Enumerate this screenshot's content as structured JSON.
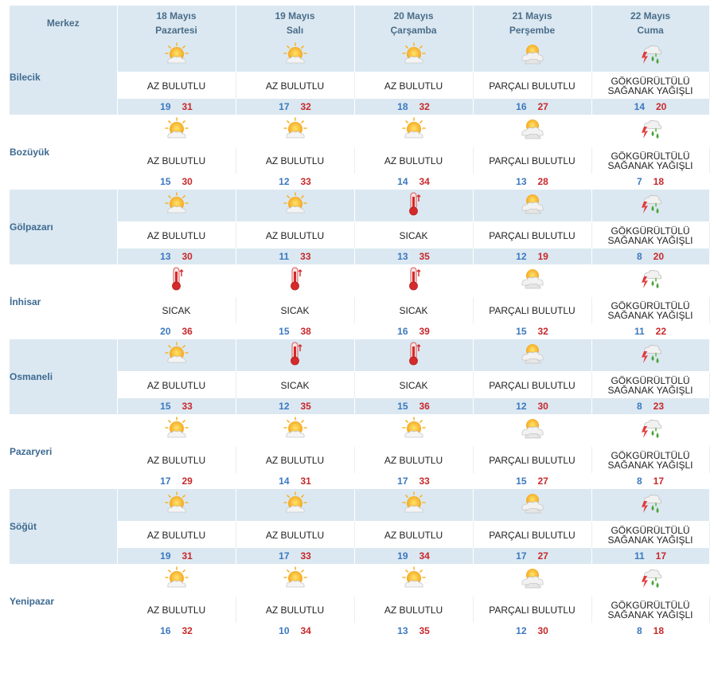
{
  "header": {
    "merkez": "Merkez",
    "days": [
      {
        "date": "18 Mayıs",
        "day": "Pazartesi"
      },
      {
        "date": "19 Mayıs",
        "day": "Salı"
      },
      {
        "date": "20 Mayıs",
        "day": "Çarşamba"
      },
      {
        "date": "21 Mayıs",
        "day": "Perşembe"
      },
      {
        "date": "22 Mayıs",
        "day": "Cuma"
      }
    ]
  },
  "icons": {
    "AZ BULUTLU": "partly-sunny-icon",
    "PARÇALI BULUTLU": "mostly-cloudy-icon",
    "SICAK": "thermometer-hot-icon",
    "GÖKGÜRÜLTÜLÜ SAĞANAK YAĞIŞLI": "thunder-shower-icon"
  },
  "cities": [
    {
      "name": "Bilecik",
      "forecast": [
        {
          "desc": "AZ BULUTLU",
          "low": "19",
          "high": "31"
        },
        {
          "desc": "AZ BULUTLU",
          "low": "17",
          "high": "32"
        },
        {
          "desc": "AZ BULUTLU",
          "low": "18",
          "high": "32"
        },
        {
          "desc": "PARÇALI BULUTLU",
          "low": "16",
          "high": "27"
        },
        {
          "desc": "GÖKGÜRÜLTÜLÜ SAĞANAK YAĞIŞLI",
          "low": "14",
          "high": "20"
        }
      ]
    },
    {
      "name": "Bozüyük",
      "forecast": [
        {
          "desc": "AZ BULUTLU",
          "low": "15",
          "high": "30"
        },
        {
          "desc": "AZ BULUTLU",
          "low": "12",
          "high": "33"
        },
        {
          "desc": "AZ BULUTLU",
          "low": "14",
          "high": "34"
        },
        {
          "desc": "PARÇALI BULUTLU",
          "low": "13",
          "high": "28"
        },
        {
          "desc": "GÖKGÜRÜLTÜLÜ SAĞANAK YAĞIŞLI",
          "low": "7",
          "high": "18"
        }
      ]
    },
    {
      "name": "Gölpazarı",
      "forecast": [
        {
          "desc": "AZ BULUTLU",
          "low": "13",
          "high": "30"
        },
        {
          "desc": "AZ BULUTLU",
          "low": "11",
          "high": "33"
        },
        {
          "desc": "SICAK",
          "low": "13",
          "high": "35"
        },
        {
          "desc": "PARÇALI BULUTLU",
          "low": "12",
          "high": "19"
        },
        {
          "desc": "GÖKGÜRÜLTÜLÜ SAĞANAK YAĞIŞLI",
          "low": "8",
          "high": "20"
        }
      ]
    },
    {
      "name": "İnhisar",
      "forecast": [
        {
          "desc": "SICAK",
          "low": "20",
          "high": "36"
        },
        {
          "desc": "SICAK",
          "low": "15",
          "high": "38"
        },
        {
          "desc": "SICAK",
          "low": "16",
          "high": "39"
        },
        {
          "desc": "PARÇALI BULUTLU",
          "low": "15",
          "high": "32"
        },
        {
          "desc": "GÖKGÜRÜLTÜLÜ SAĞANAK YAĞIŞLI",
          "low": "11",
          "high": "22"
        }
      ]
    },
    {
      "name": "Osmaneli",
      "forecast": [
        {
          "desc": "AZ BULUTLU",
          "low": "15",
          "high": "33"
        },
        {
          "desc": "SICAK",
          "low": "12",
          "high": "35"
        },
        {
          "desc": "SICAK",
          "low": "15",
          "high": "36"
        },
        {
          "desc": "PARÇALI BULUTLU",
          "low": "12",
          "high": "30"
        },
        {
          "desc": "GÖKGÜRÜLTÜLÜ SAĞANAK YAĞIŞLI",
          "low": "8",
          "high": "23"
        }
      ]
    },
    {
      "name": "Pazaryeri",
      "forecast": [
        {
          "desc": "AZ BULUTLU",
          "low": "17",
          "high": "29"
        },
        {
          "desc": "AZ BULUTLU",
          "low": "14",
          "high": "31"
        },
        {
          "desc": "AZ BULUTLU",
          "low": "17",
          "high": "33"
        },
        {
          "desc": "PARÇALI BULUTLU",
          "low": "15",
          "high": "27"
        },
        {
          "desc": "GÖKGÜRÜLTÜLÜ SAĞANAK YAĞIŞLI",
          "low": "8",
          "high": "17"
        }
      ]
    },
    {
      "name": "Söğüt",
      "forecast": [
        {
          "desc": "AZ BULUTLU",
          "low": "19",
          "high": "31"
        },
        {
          "desc": "AZ BULUTLU",
          "low": "17",
          "high": "33"
        },
        {
          "desc": "AZ BULUTLU",
          "low": "19",
          "high": "34"
        },
        {
          "desc": "PARÇALI BULUTLU",
          "low": "17",
          "high": "27"
        },
        {
          "desc": "GÖKGÜRÜLTÜLÜ SAĞANAK YAĞIŞLI",
          "low": "11",
          "high": "17"
        }
      ]
    },
    {
      "name": "Yenipazar",
      "forecast": [
        {
          "desc": "AZ BULUTLU",
          "low": "16",
          "high": "32"
        },
        {
          "desc": "AZ BULUTLU",
          "low": "10",
          "high": "34"
        },
        {
          "desc": "AZ BULUTLU",
          "low": "13",
          "high": "35"
        },
        {
          "desc": "PARÇALI BULUTLU",
          "low": "12",
          "high": "30"
        },
        {
          "desc": "GÖKGÜRÜLTÜLÜ SAĞANAK YAĞIŞLI",
          "low": "8",
          "high": "18"
        }
      ]
    }
  ]
}
